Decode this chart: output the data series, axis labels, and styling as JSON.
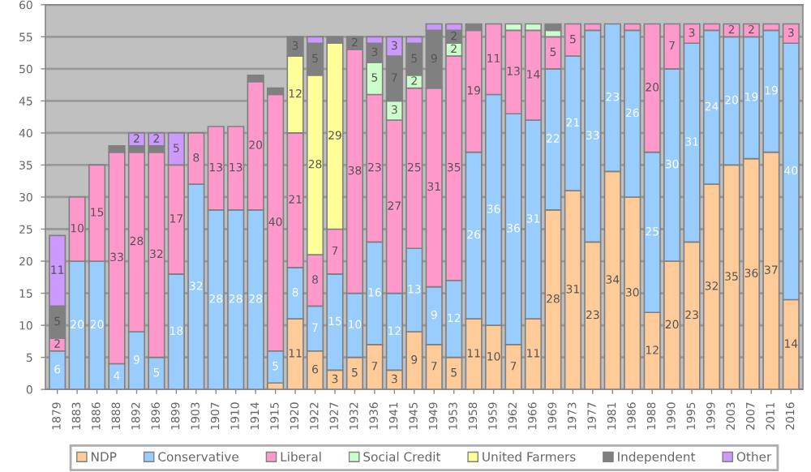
{
  "chart_data": {
    "type": "bar",
    "stacked": true,
    "categories": [
      "1879",
      "1883",
      "1886",
      "1888",
      "1892",
      "1896",
      "1899",
      "1903",
      "1907",
      "1910",
      "1914",
      "1915",
      "1920",
      "1922",
      "1927",
      "1932",
      "1936",
      "1941",
      "1945",
      "1949",
      "1953",
      "1958",
      "1959",
      "1962",
      "1966",
      "1969",
      "1973",
      "1977",
      "1981",
      "1986",
      "1988",
      "1990",
      "1995",
      "1999",
      "2003",
      "2007",
      "2011",
      "2016"
    ],
    "series": [
      {
        "name": "NDP",
        "color": "#ffcc99",
        "values": [
          null,
          null,
          null,
          null,
          null,
          null,
          null,
          null,
          null,
          null,
          null,
          1,
          11,
          6,
          3,
          5,
          7,
          3,
          9,
          7,
          5,
          11,
          10,
          7,
          11,
          28,
          31,
          23,
          34,
          30,
          12,
          20,
          23,
          32,
          35,
          36,
          37,
          14
        ],
        "value_labels": [
          null,
          null,
          null,
          null,
          null,
          null,
          null,
          null,
          null,
          null,
          null,
          null,
          "11",
          "6",
          "3",
          "5",
          "7",
          "3",
          "9",
          "7",
          "5",
          "11",
          "10",
          "7",
          "11",
          "28",
          "31",
          "23",
          "34",
          "30",
          "12",
          "20",
          "23",
          "32",
          "35",
          "36",
          "37",
          "14"
        ]
      },
      {
        "name": "Conservative",
        "color": "#99ccff",
        "values": [
          6,
          20,
          20,
          4,
          9,
          5,
          18,
          32,
          28,
          28,
          28,
          5,
          8,
          7,
          15,
          10,
          16,
          12,
          13,
          9,
          12,
          26,
          36,
          36,
          31,
          22,
          21,
          33,
          23,
          26,
          25,
          30,
          31,
          24,
          20,
          19,
          19,
          40
        ],
        "value_labels": [
          "6",
          "20",
          "20",
          "4",
          "9",
          "5",
          "18",
          "32",
          "28",
          "28",
          "28",
          "5",
          "8",
          "7",
          "15",
          "10",
          "16",
          "12",
          "13",
          "9",
          "12",
          "26",
          "36",
          "36",
          "31",
          "22",
          "21",
          "33",
          "23",
          "26",
          "25",
          "30",
          "31",
          "24",
          "20",
          "19",
          "19",
          "40"
        ]
      },
      {
        "name": "Liberal",
        "color": "#ff99cc",
        "values": [
          2,
          10,
          15,
          33,
          28,
          32,
          17,
          8,
          13,
          13,
          20,
          40,
          21,
          8,
          7,
          38,
          23,
          27,
          25,
          31,
          35,
          19,
          11,
          13,
          14,
          5,
          5,
          1,
          null,
          1,
          20,
          7,
          3,
          1,
          2,
          2,
          1,
          3
        ],
        "value_labels": [
          "2",
          "10",
          "15",
          "33",
          "28",
          "32",
          "17",
          "8",
          "13",
          "13",
          "20",
          "40",
          "21",
          "8",
          "7",
          "38",
          "23",
          "27",
          "25",
          "31",
          "35",
          "19",
          "11",
          "13",
          "14",
          "5",
          "5",
          null,
          null,
          null,
          "20",
          "7",
          "3",
          null,
          "2",
          "2",
          null,
          "3"
        ]
      },
      {
        "name": "Social Credit",
        "color": "#ccffcc",
        "values": [
          null,
          null,
          null,
          null,
          null,
          null,
          null,
          null,
          null,
          null,
          null,
          null,
          null,
          null,
          null,
          null,
          5,
          3,
          2,
          null,
          2,
          null,
          null,
          1,
          1,
          1,
          null,
          null,
          null,
          null,
          null,
          null,
          null,
          null,
          null,
          null,
          null,
          null
        ],
        "value_labels": [
          null,
          null,
          null,
          null,
          null,
          null,
          null,
          null,
          null,
          null,
          null,
          null,
          null,
          null,
          null,
          null,
          "5",
          "3",
          "2",
          null,
          "2",
          null,
          null,
          null,
          null,
          null,
          null,
          null,
          null,
          null,
          null,
          null,
          null,
          null,
          null,
          null,
          null,
          null
        ]
      },
      {
        "name": "United Farmers",
        "color": "#ffff99",
        "values": [
          null,
          null,
          null,
          null,
          null,
          null,
          null,
          null,
          null,
          null,
          null,
          null,
          12,
          28,
          29,
          null,
          null,
          null,
          null,
          null,
          null,
          null,
          null,
          null,
          null,
          null,
          null,
          null,
          null,
          null,
          null,
          null,
          null,
          null,
          null,
          null,
          null,
          null
        ],
        "value_labels": [
          null,
          null,
          null,
          null,
          null,
          null,
          null,
          null,
          null,
          null,
          null,
          null,
          "12",
          "28",
          "29",
          null,
          null,
          null,
          null,
          null,
          null,
          null,
          null,
          null,
          null,
          null,
          null,
          null,
          null,
          null,
          null,
          null,
          null,
          null,
          null,
          null,
          null,
          null
        ]
      },
      {
        "name": "Independent",
        "color": "#808080",
        "values": [
          5,
          null,
          null,
          1,
          1,
          1,
          null,
          null,
          null,
          null,
          1,
          1,
          3,
          5,
          1,
          2,
          3,
          7,
          5,
          9,
          2,
          1,
          null,
          null,
          null,
          1,
          null,
          null,
          null,
          null,
          null,
          null,
          null,
          null,
          null,
          null,
          null,
          null
        ],
        "value_labels": [
          "5",
          null,
          null,
          null,
          null,
          null,
          null,
          null,
          null,
          null,
          null,
          null,
          "3",
          "5",
          null,
          "2",
          "3",
          "7",
          "5",
          "9",
          "2",
          null,
          null,
          null,
          null,
          null,
          null,
          null,
          null,
          null,
          null,
          null,
          null,
          null,
          null,
          null,
          null,
          null
        ]
      },
      {
        "name": "Other",
        "color": "#cc99ff",
        "values": [
          11,
          null,
          null,
          null,
          2,
          2,
          5,
          null,
          null,
          null,
          null,
          null,
          null,
          1,
          null,
          null,
          1,
          3,
          1,
          1,
          1,
          null,
          null,
          null,
          null,
          null,
          null,
          null,
          null,
          null,
          null,
          null,
          null,
          null,
          null,
          null,
          null,
          null
        ],
        "value_labels": [
          "11",
          null,
          null,
          null,
          "2",
          "2",
          "5",
          null,
          null,
          null,
          null,
          null,
          null,
          null,
          null,
          null,
          null,
          "3",
          null,
          null,
          null,
          null,
          null,
          null,
          null,
          null,
          null,
          null,
          null,
          null,
          null,
          null,
          null,
          null,
          null,
          null,
          null,
          null
        ]
      }
    ],
    "ylim": [
      0,
      60
    ],
    "yticks": [
      0,
      5,
      10,
      15,
      20,
      25,
      30,
      35,
      40,
      45,
      50,
      55,
      60
    ],
    "grid": "y",
    "legend": "bottom"
  }
}
